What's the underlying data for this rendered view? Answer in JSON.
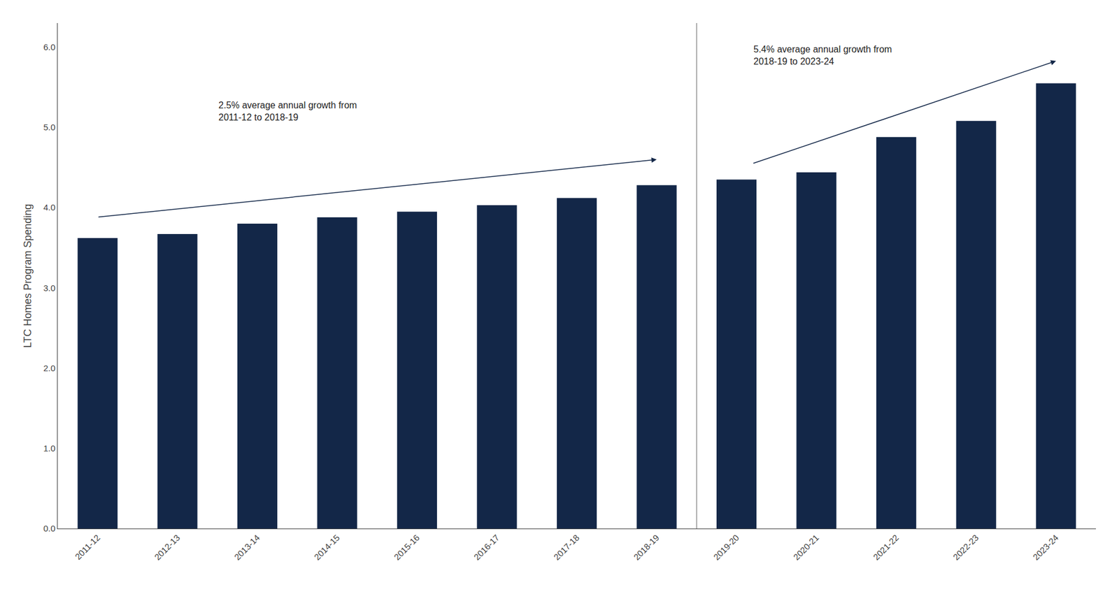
{
  "chart_data": {
    "type": "bar",
    "categories": [
      "2011-12",
      "2012-13",
      "2013-14",
      "2014-15",
      "2015-16",
      "2016-17",
      "2017-18",
      "2018-19",
      "2019-20",
      "2020-21",
      "2021-22",
      "2022-23",
      "2023-24"
    ],
    "values": [
      3.62,
      3.67,
      3.8,
      3.88,
      3.95,
      4.03,
      4.12,
      4.28,
      4.35,
      4.44,
      4.88,
      5.08,
      5.55
    ],
    "color": "#132748",
    "ylabel": "LTC Homes Program Spending",
    "ylim": [
      0,
      6.3
    ],
    "yticks": [
      {
        "value": 0,
        "label": "0.0"
      },
      {
        "value": 1,
        "label": "1.0"
      },
      {
        "value": 2,
        "label": "2.0"
      },
      {
        "value": 3,
        "label": "3.0"
      },
      {
        "value": 4,
        "label": "4.0"
      },
      {
        "value": 5,
        "label": "5.0"
      },
      {
        "value": 6,
        "label": "6.0"
      }
    ],
    "annotations": [
      "2.5% average annual growth from\n2011-12 to 2018-19",
      "5.4% average annual growth from\n2018-19 to 2023-24"
    ],
    "divider_after": "2018-19",
    "grid": false
  }
}
